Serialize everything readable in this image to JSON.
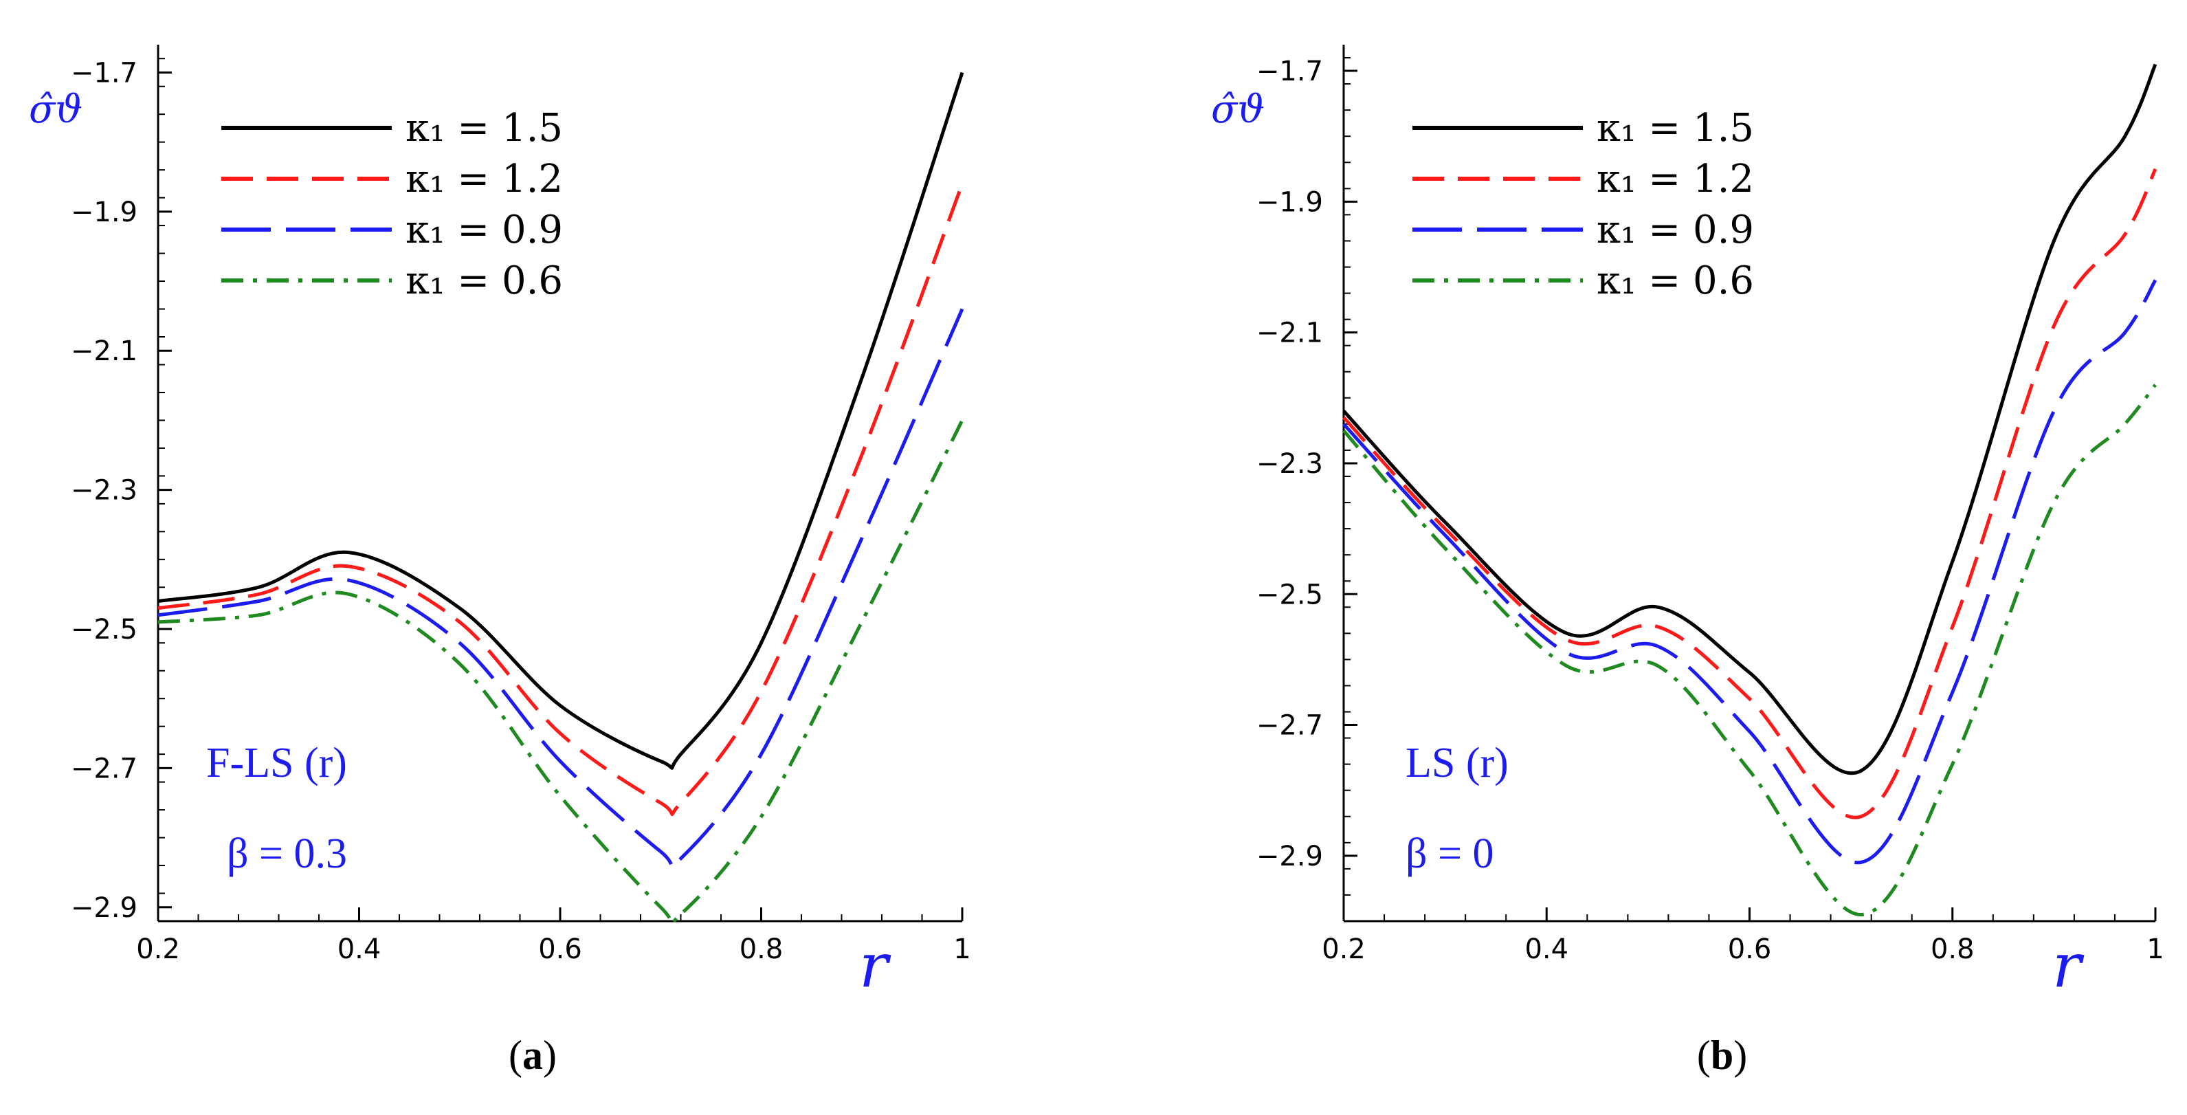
{
  "colors": {
    "axis": "#000000",
    "annotation": "#1c1cf0",
    "series": [
      "#000000",
      "#ff1a1a",
      "#1c1cf0",
      "#1f8a1f"
    ]
  },
  "chart_data": [
    {
      "type": "line",
      "panel_label": {
        "prefix": "(",
        "bold": "a",
        "suffix": ")"
      },
      "xlabel": "r",
      "ylabel": "σ̂ϑ",
      "xlim": [
        0.2,
        1.0
      ],
      "ylim": [
        -2.92,
        -1.66
      ],
      "xticks": [
        0.2,
        0.4,
        0.6,
        0.8,
        1.0
      ],
      "xtick_labels": [
        "0.2",
        "0.4",
        "0.6",
        "0.8",
        "1"
      ],
      "yticks": [
        -1.7,
        -1.9,
        -2.1,
        -2.3,
        -2.5,
        -2.7,
        -2.9
      ],
      "ytick_labels": [
        "−1.7",
        "−1.9",
        "−2.1",
        "−2.3",
        "−2.5",
        "−2.7",
        "−2.9"
      ],
      "annotations": [
        "F-LS (r)",
        "β = 0.3"
      ],
      "legend_placement": "top-left",
      "x": [
        0.2,
        0.3,
        0.39,
        0.5,
        0.6,
        0.7,
        0.72,
        0.8,
        0.9,
        1.0
      ],
      "series": [
        {
          "name": "κ₁ = 1.5",
          "dash": "solid",
          "values": [
            -2.46,
            -2.44,
            -2.39,
            -2.47,
            -2.61,
            -2.69,
            -2.68,
            -2.52,
            -2.14,
            -1.7
          ]
        },
        {
          "name": "κ₁ = 1.2",
          "dash": "dashed",
          "values": [
            -2.47,
            -2.45,
            -2.41,
            -2.49,
            -2.65,
            -2.75,
            -2.75,
            -2.59,
            -2.25,
            -1.86
          ]
        },
        {
          "name": "κ₁ = 0.9",
          "dash": "longdash",
          "values": [
            -2.48,
            -2.46,
            -2.43,
            -2.52,
            -2.69,
            -2.82,
            -2.83,
            -2.68,
            -2.37,
            -2.04
          ]
        },
        {
          "name": "κ₁ = 0.6",
          "dash": "dashdot",
          "values": [
            -2.49,
            -2.48,
            -2.45,
            -2.55,
            -2.74,
            -2.9,
            -2.91,
            -2.77,
            -2.49,
            -2.2
          ]
        }
      ]
    },
    {
      "type": "line",
      "panel_label": {
        "prefix": "(",
        "bold": "b",
        "suffix": ")"
      },
      "xlabel": "r",
      "ylabel": "σ̂ϑ",
      "xlim": [
        0.2,
        1.0
      ],
      "ylim": [
        -3.0,
        -1.66
      ],
      "xticks": [
        0.2,
        0.4,
        0.6,
        0.8,
        1.0
      ],
      "xtick_labels": [
        "0.2",
        "0.4",
        "0.6",
        "0.8",
        "1"
      ],
      "yticks": [
        -1.7,
        -1.9,
        -2.1,
        -2.3,
        -2.5,
        -2.7,
        -2.9
      ],
      "ytick_labels": [
        "−1.7",
        "−1.9",
        "−2.1",
        "−2.3",
        "−2.5",
        "−2.7",
        "−2.9"
      ],
      "annotations": [
        "LS (r)",
        "β = 0"
      ],
      "legend_placement": "top-left",
      "x": [
        0.2,
        0.3,
        0.42,
        0.51,
        0.6,
        0.71,
        0.8,
        0.9,
        0.97,
        1.0
      ],
      "series": [
        {
          "name": "κ₁ = 1.5",
          "dash": "solid",
          "values": [
            -2.22,
            -2.39,
            -2.56,
            -2.52,
            -2.62,
            -2.77,
            -2.45,
            -1.96,
            -1.8,
            -1.69
          ]
        },
        {
          "name": "κ₁ = 1.2",
          "dash": "dashed",
          "values": [
            -2.23,
            -2.4,
            -2.57,
            -2.55,
            -2.66,
            -2.84,
            -2.55,
            -2.09,
            -1.95,
            -1.85
          ]
        },
        {
          "name": "κ₁ = 0.9",
          "dash": "longdash",
          "values": [
            -2.24,
            -2.41,
            -2.59,
            -2.58,
            -2.71,
            -2.91,
            -2.65,
            -2.22,
            -2.1,
            -2.02
          ]
        },
        {
          "name": "κ₁ = 0.6",
          "dash": "dashdot",
          "values": [
            -2.25,
            -2.43,
            -2.61,
            -2.61,
            -2.77,
            -2.99,
            -2.76,
            -2.36,
            -2.24,
            -2.18
          ]
        }
      ]
    }
  ]
}
